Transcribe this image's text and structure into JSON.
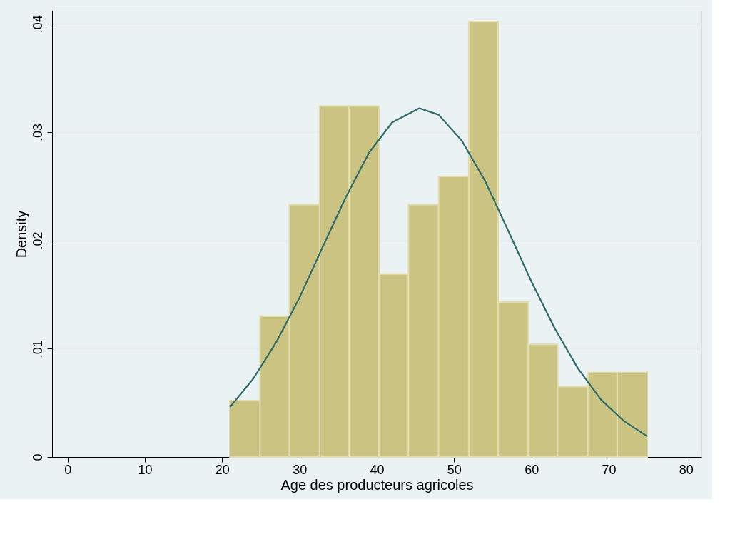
{
  "chart_data": {
    "type": "histogram",
    "xlabel": "Age des producteurs agricoles",
    "ylabel": "Density",
    "xlim": [
      -2,
      82
    ],
    "xticks": [
      0,
      10,
      20,
      30,
      40,
      50,
      60,
      70,
      80
    ],
    "ylim": [
      0,
      0.0412
    ],
    "yticks": [
      0,
      {
        "value": 0.01,
        "label": ".01"
      },
      {
        "value": 0.02,
        "label": ".02"
      },
      {
        "value": 0.03,
        "label": ".03"
      },
      {
        "value": 0.04,
        "label": ".04"
      }
    ],
    "grid": "y",
    "series": [
      {
        "color": "#cbc382",
        "bins": [
          21,
          24.9,
          28.7,
          32.6,
          36.4,
          40.3,
          44.1,
          48.0,
          51.9,
          55.7,
          59.6,
          63.4,
          67.3,
          71.1,
          75
        ],
        "values": [
          0.0052,
          0.013,
          0.0233,
          0.0324,
          0.0324,
          0.0169,
          0.0233,
          0.0259,
          0.0402,
          0.0143,
          0.0104,
          0.0065,
          0.0078,
          0.0078
        ]
      },
      {
        "type": "line",
        "color": "#2e6b6b",
        "x": [
          21,
          24,
          27,
          30,
          33,
          36,
          39,
          42,
          45.5,
          48,
          51,
          54,
          57,
          60,
          63,
          66,
          69,
          72,
          75
        ],
        "values": [
          0.0046,
          0.0072,
          0.0106,
          0.0147,
          0.0194,
          0.024,
          0.0281,
          0.0309,
          0.0322,
          0.0316,
          0.0292,
          0.0255,
          0.0209,
          0.0162,
          0.0119,
          0.0082,
          0.0053,
          0.0033,
          0.0019
        ]
      }
    ]
  }
}
